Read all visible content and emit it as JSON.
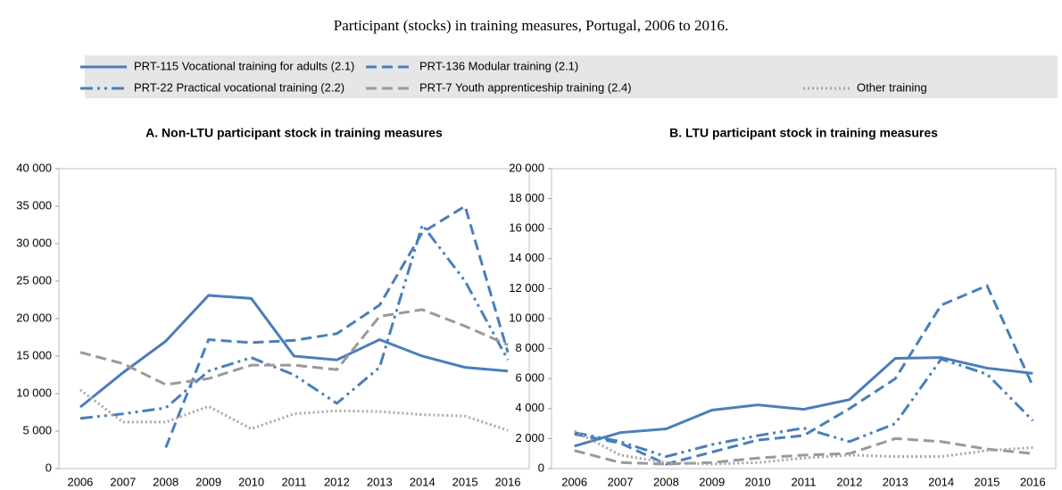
{
  "title": "Participant (stocks) in training measures, Portugal, 2006 to 2016.",
  "chart_data": [
    {
      "type": "line",
      "title": "A. Non-LTU participant stock in training measures",
      "categories": [
        "2006",
        "2007",
        "2008",
        "2009",
        "2010",
        "2011",
        "2012",
        "2013",
        "2014",
        "2015",
        "2016"
      ],
      "ylim": [
        0,
        40000
      ],
      "yticks": [
        0,
        {
          "value": 5000,
          "label": "5 000"
        },
        {
          "value": 10000,
          "label": "10 000"
        },
        {
          "value": 15000,
          "label": "15 000"
        },
        {
          "value": 20000,
          "label": "20 000"
        },
        {
          "value": 25000,
          "label": "25 000"
        },
        {
          "value": 30000,
          "label": "30 000"
        },
        {
          "value": 35000,
          "label": "35 000"
        },
        {
          "value": 40000,
          "label": "40 000"
        }
      ],
      "series": [
        {
          "name": "PRT-115 Vocational training for adults (2.1)",
          "color": "#4a7ebb",
          "dash": "solid",
          "values": [
            8200,
            12800,
            17000,
            23100,
            22700,
            15000,
            14500,
            17200,
            15000,
            13500,
            13000
          ]
        },
        {
          "name": "PRT-136 Modular training (2.1)",
          "color": "#4a7ebb",
          "dash": "dash",
          "values": [
            null,
            null,
            2800,
            17200,
            16800,
            17100,
            18000,
            21800,
            31500,
            35000,
            15500
          ]
        },
        {
          "name": "PRT-22 Practical vocational training (2.2)",
          "color": "#4a7ebb",
          "dash": "dashdotdot",
          "values": [
            6700,
            7300,
            8100,
            13000,
            14800,
            12500,
            8700,
            13500,
            32500,
            25000,
            14500
          ]
        },
        {
          "name": "PRT-7 Youth apprenticeship training (2.4)",
          "color": "#999999",
          "dash": "dash",
          "values": [
            15500,
            14000,
            11200,
            12000,
            13800,
            13800,
            13200,
            20300,
            21200,
            19000,
            16500
          ]
        },
        {
          "name": "Other training",
          "color": "#a6a6a6",
          "dash": "dot",
          "values": [
            10500,
            6200,
            6200,
            8300,
            5300,
            7300,
            7700,
            7600,
            7200,
            7000,
            5100
          ]
        }
      ]
    },
    {
      "type": "line",
      "title": "B. LTU participant stock in training measures",
      "categories": [
        "2006",
        "2007",
        "2008",
        "2009",
        "2010",
        "2011",
        "2012",
        "2013",
        "2014",
        "2015",
        "2016"
      ],
      "ylim": [
        0,
        20000
      ],
      "yticks": [
        0,
        {
          "value": 2000,
          "label": "2 000"
        },
        {
          "value": 4000,
          "label": "4 000"
        },
        {
          "value": 6000,
          "label": "6 000"
        },
        {
          "value": 8000,
          "label": "8 000"
        },
        {
          "value": 10000,
          "label": "10 000"
        },
        {
          "value": 12000,
          "label": "12 000"
        },
        {
          "value": 14000,
          "label": "14 000"
        },
        {
          "value": 16000,
          "label": "16 000"
        },
        {
          "value": 18000,
          "label": "18 000"
        },
        {
          "value": 20000,
          "label": "20 000"
        }
      ],
      "series": [
        {
          "color": "#4a7ebb",
          "dash": "solid",
          "values": [
            1500,
            2400,
            2650,
            3900,
            4250,
            3950,
            4600,
            7350,
            7400,
            6700,
            6350
          ]
        },
        {
          "color": "#4a7ebb",
          "dash": "dash",
          "values": [
            2300,
            1700,
            300,
            1100,
            1900,
            2200,
            4000,
            6000,
            10900,
            12200,
            5500
          ]
        },
        {
          "color": "#4a7ebb",
          "dash": "dashdotdot",
          "values": [
            2400,
            1800,
            800,
            1600,
            2200,
            2700,
            1800,
            3000,
            7300,
            6300,
            3200
          ]
        },
        {
          "color": "#999999",
          "dash": "dash",
          "values": [
            1200,
            400,
            300,
            400,
            700,
            900,
            1000,
            2000,
            1800,
            1300,
            1000
          ]
        },
        {
          "color": "#a6a6a6",
          "dash": "dot",
          "values": [
            2500,
            900,
            400,
            300,
            400,
            700,
            900,
            800,
            800,
            1200,
            1400
          ]
        }
      ]
    }
  ]
}
